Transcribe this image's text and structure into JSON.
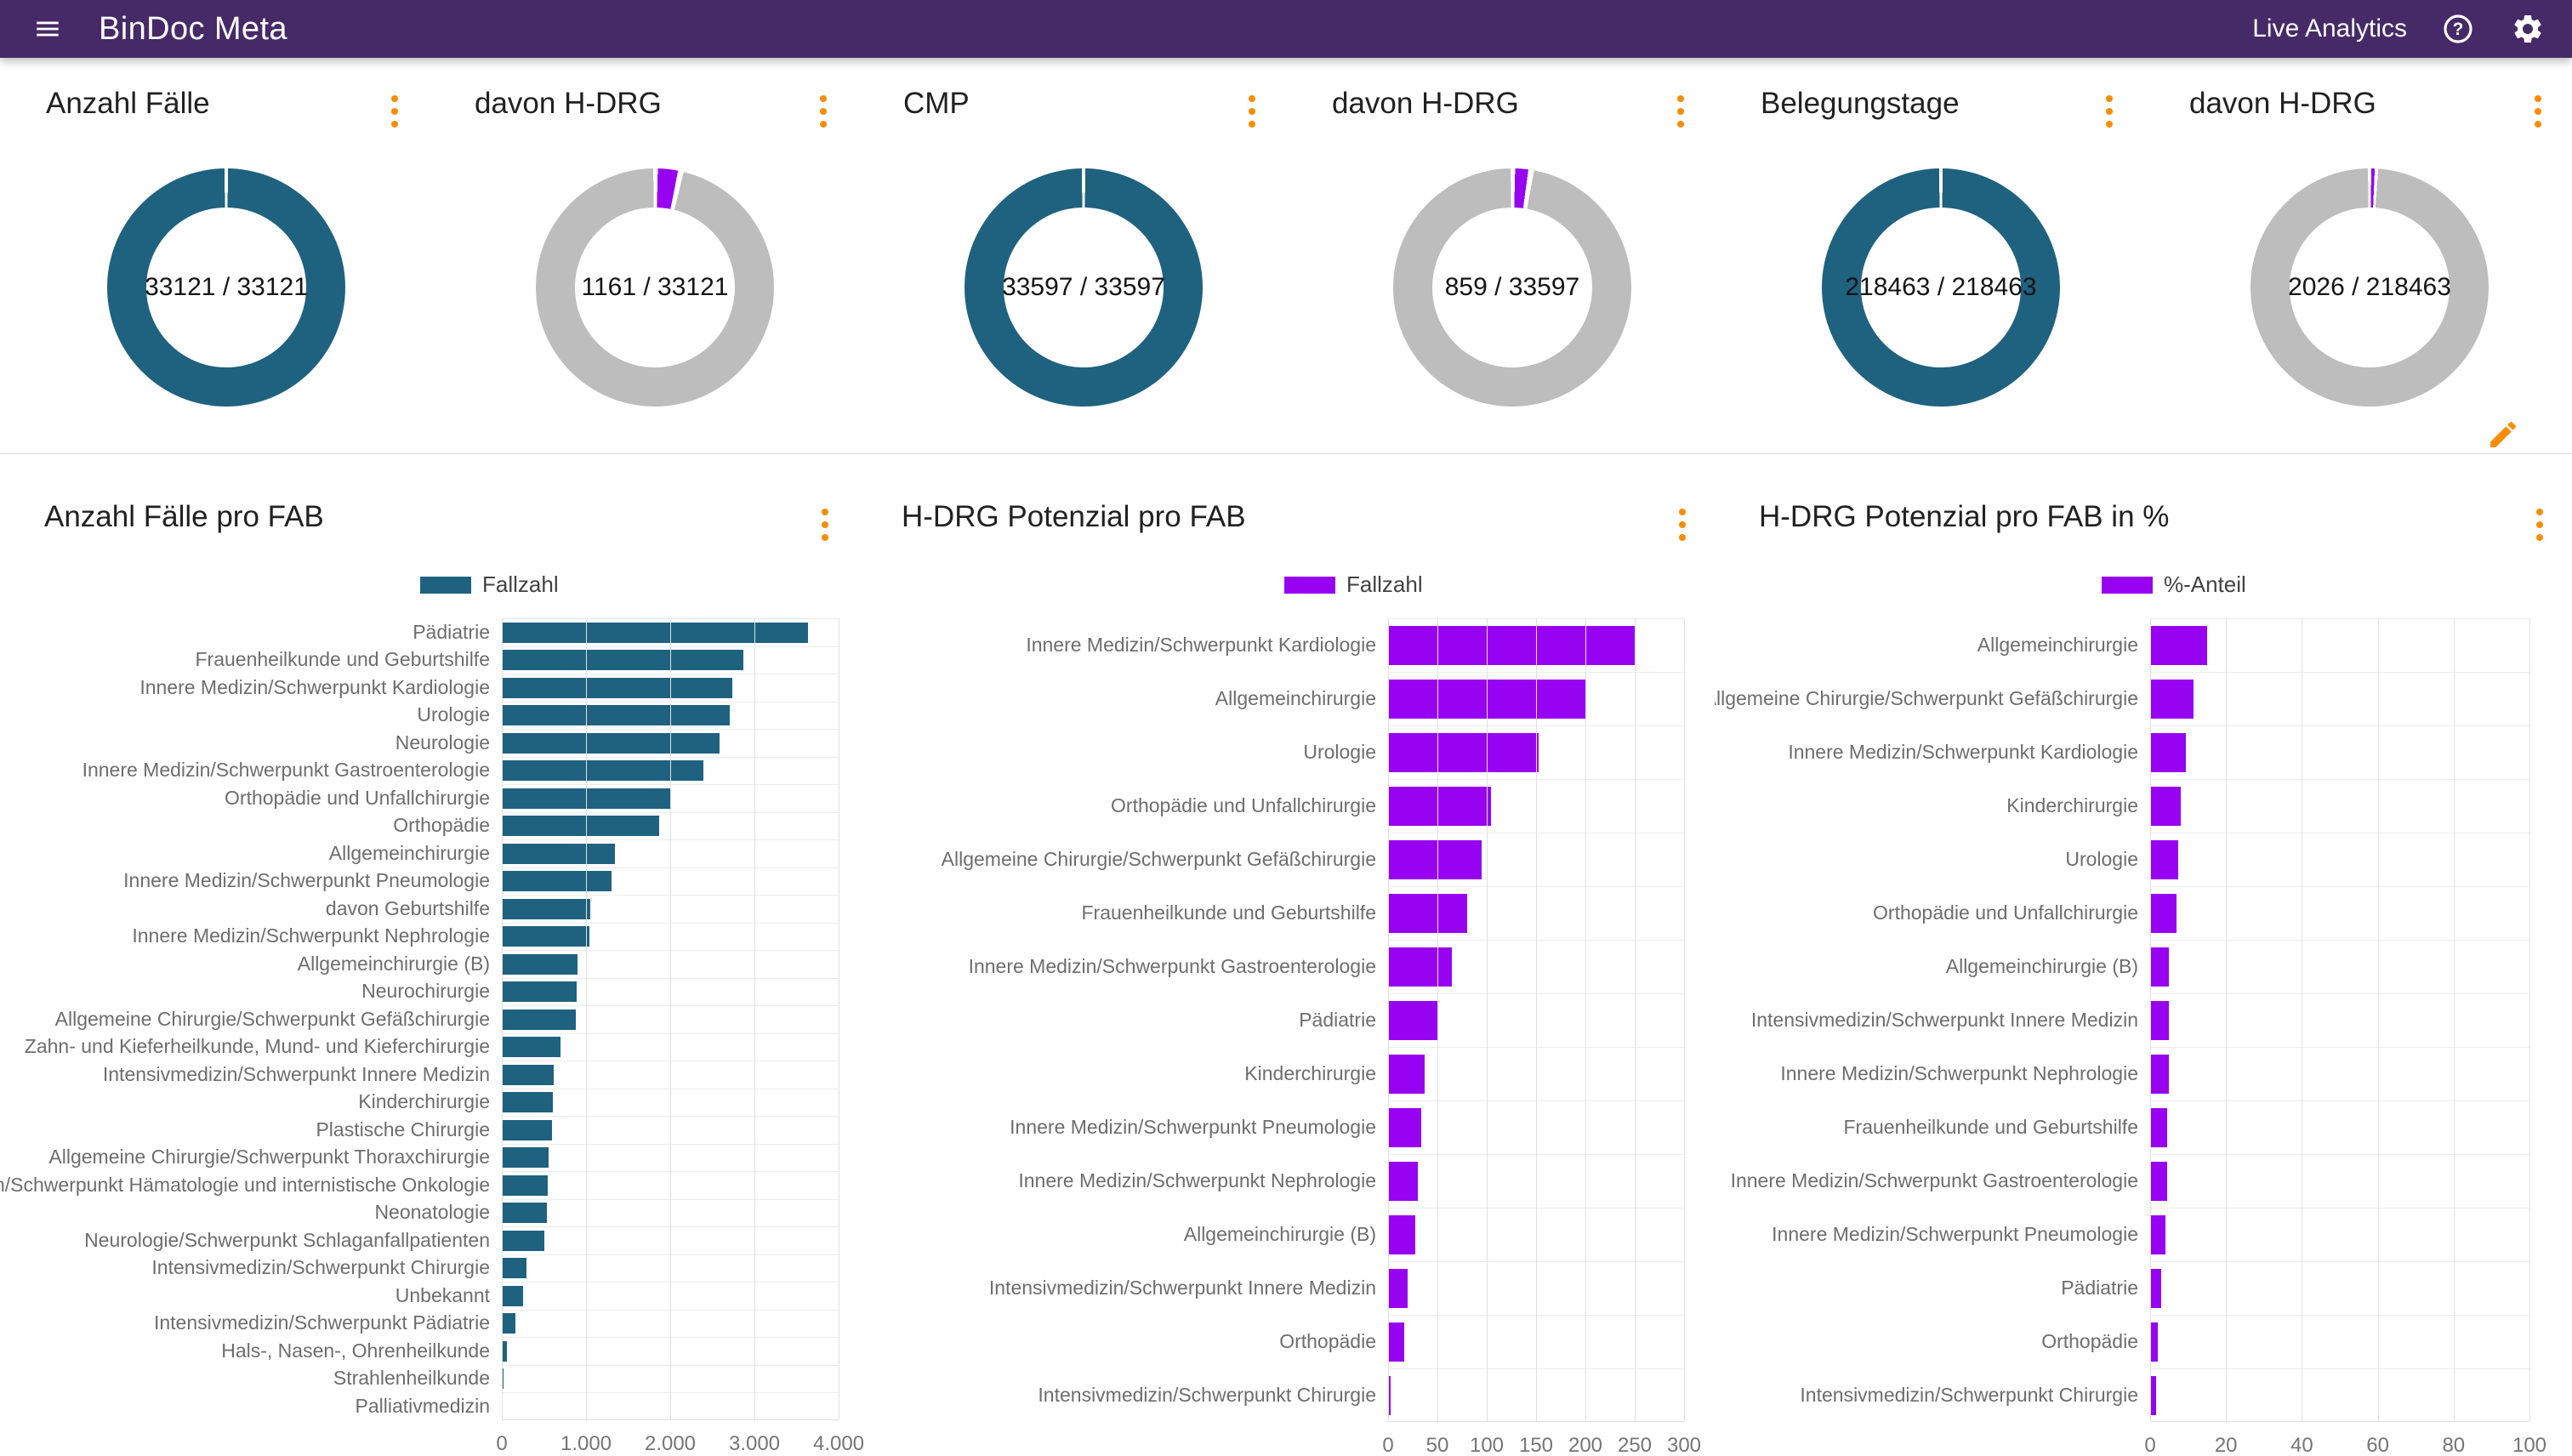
{
  "header": {
    "title": "BinDoc Meta",
    "nav_label": "Live Analytics"
  },
  "colors": {
    "header_bg": "#462a68",
    "accent_orange": "#fb8c00",
    "teal": "#1f627f",
    "purple": "#9703f0",
    "donut_rest_gray": "#bdbdbd"
  },
  "kpis": [
    {
      "title": "Anzahl Fälle",
      "value": 33121,
      "total": 33121,
      "display": "33121 / 33121",
      "fill": "#1f627f"
    },
    {
      "title": "davon H-DRG",
      "value": 1161,
      "total": 33121,
      "display": "1161 / 33121",
      "fill": "#9703f0"
    },
    {
      "title": "CMP",
      "value": 33597,
      "total": 33597,
      "display": "33597 / 33597",
      "fill": "#1f627f"
    },
    {
      "title": "davon H-DRG",
      "value": 859,
      "total": 33597,
      "display": "859 / 33597",
      "fill": "#9703f0"
    },
    {
      "title": "Belegungstage",
      "value": 218463,
      "total": 218463,
      "display": "218463 / 218463",
      "fill": "#1f627f"
    },
    {
      "title": "davon H-DRG",
      "value": 2026,
      "total": 218463,
      "display": "2026 / 218463",
      "fill": "#9703f0"
    }
  ],
  "chart_data": [
    {
      "type": "bar",
      "title": "Anzahl Fälle pro FAB",
      "legend": "Fallzahl",
      "color": "#1f627f",
      "orientation": "horizontal",
      "xlim": [
        0,
        4000
      ],
      "xticks": [
        "0",
        "1.000",
        "2.000",
        "3.000",
        "4.000"
      ],
      "grid": true,
      "categories": [
        "Pädiatrie",
        "Frauenheilkunde und Geburtshilfe",
        "Innere Medizin/Schwerpunkt Kardiologie",
        "Urologie",
        "Neurologie",
        "Innere Medizin/Schwerpunkt Gastroenterologie",
        "Orthopädie und Unfallchirurgie",
        "Orthopädie",
        "Allgemeinchirurgie",
        "Innere Medizin/Schwerpunkt Pneumologie",
        "davon Geburtshilfe",
        "Innere Medizin/Schwerpunkt Nephrologie",
        "Allgemeinchirurgie (B)",
        "Neurochirurgie",
        "Allgemeine Chirurgie/Schwerpunkt Gefäßchirurgie",
        "Zahn- und Kieferheilkunde, Mund- und Kieferchirurgie",
        "Intensivmedizin/Schwerpunkt Innere Medizin",
        "Kinderchirurgie",
        "Plastische Chirurgie",
        "Allgemeine Chirurgie/Schwerpunkt Thoraxchirurgie",
        "Innere Medizin/Schwerpunkt Hämatologie und internistische Onkologie",
        "Neonatologie",
        "Neurologie/Schwerpunkt Schlaganfallpatienten",
        "Intensivmedizin/Schwerpunkt Chirurgie",
        "Unbekannt",
        "Intensivmedizin/Schwerpunkt Pädiatrie",
        "Hals-, Nasen-, Ohrenheilkunde",
        "Strahlenheilkunde",
        "Palliativmedizin"
      ],
      "values": [
        3640,
        2870,
        2740,
        2710,
        2590,
        2390,
        2010,
        1870,
        1340,
        1300,
        1050,
        1040,
        900,
        890,
        880,
        700,
        620,
        610,
        600,
        560,
        550,
        540,
        500,
        290,
        250,
        160,
        60,
        25,
        10
      ]
    },
    {
      "type": "bar",
      "title": "H-DRG Potenzial pro FAB",
      "legend": "Fallzahl",
      "color": "#9703f0",
      "orientation": "horizontal",
      "xlim": [
        0,
        300
      ],
      "xticks": [
        "0",
        "50",
        "100",
        "150",
        "200",
        "250",
        "300"
      ],
      "grid": true,
      "categories": [
        "Innere Medizin/Schwerpunkt Kardiologie",
        "Allgemeinchirurgie",
        "Urologie",
        "Orthopädie und Unfallchirurgie",
        "Allgemeine Chirurgie/Schwerpunkt Gefäßchirurgie",
        "Frauenheilkunde und Geburtshilfe",
        "Innere Medizin/Schwerpunkt Gastroenterologie",
        "Pädiatrie",
        "Kinderchirurgie",
        "Innere Medizin/Schwerpunkt Pneumologie",
        "Innere Medizin/Schwerpunkt Nephrologie",
        "Allgemeinchirurgie (B)",
        "Intensivmedizin/Schwerpunkt Innere Medizin",
        "Orthopädie",
        "Intensivmedizin/Schwerpunkt Chirurgie"
      ],
      "values": [
        250,
        200,
        153,
        104,
        95,
        80,
        65,
        51,
        37,
        34,
        30,
        28,
        20,
        16,
        3
      ]
    },
    {
      "type": "bar",
      "title": "H-DRG Potenzial pro FAB in %",
      "legend": "%-Anteil",
      "color": "#9703f0",
      "orientation": "horizontal",
      "xlim": [
        0,
        100
      ],
      "xticks": [
        "0",
        "20",
        "40",
        "60",
        "80",
        "100"
      ],
      "grid": true,
      "categories": [
        "Allgemeinchirurgie",
        "Allgemeine Chirurgie/Schwerpunkt Gefäßchirurgie",
        "Innere Medizin/Schwerpunkt Kardiologie",
        "Kinderchirurgie",
        "Urologie",
        "Orthopädie und Unfallchirurgie",
        "Allgemeinchirurgie (B)",
        "Intensivmedizin/Schwerpunkt Innere Medizin",
        "Innere Medizin/Schwerpunkt Nephrologie",
        "Frauenheilkunde und Geburtshilfe",
        "Innere Medizin/Schwerpunkt Gastroenterologie",
        "Innere Medizin/Schwerpunkt Pneumologie",
        "Pädiatrie",
        "Orthopädie",
        "Intensivmedizin/Schwerpunkt Chirurgie"
      ],
      "values": [
        15,
        11.5,
        9.5,
        8,
        7.5,
        7,
        5,
        5,
        5,
        4.5,
        4.5,
        4,
        3,
        2,
        1.5
      ]
    }
  ],
  "icons": {
    "menu": "menu-icon",
    "help": "help-icon",
    "settings": "gear-icon",
    "edit": "pencil-icon",
    "kebab": "kebab-menu-icon"
  }
}
